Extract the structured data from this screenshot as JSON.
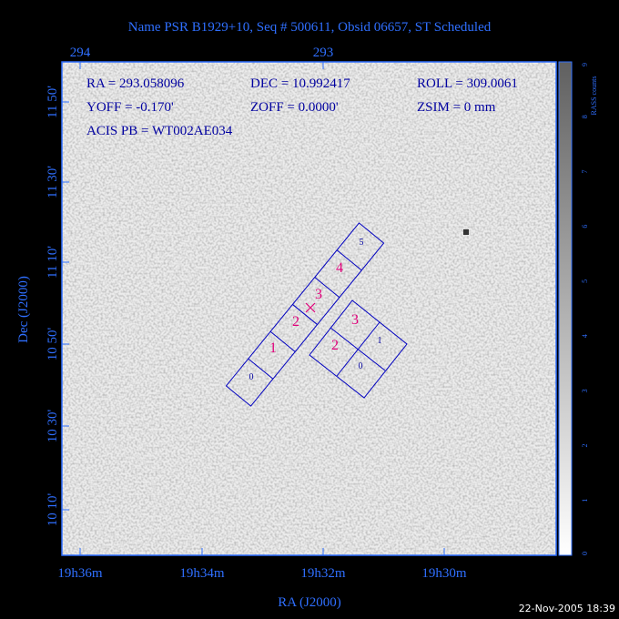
{
  "header": {
    "title": "Name PSR B1929+10, Seq # 500611, Obsid 06657, ST Scheduled"
  },
  "top_axis": {
    "labels": [
      "294",
      "293"
    ]
  },
  "info": {
    "line1": [
      "RA = 293.058096",
      "DEC = 10.992417",
      "ROLL = 309.0061"
    ],
    "line2": [
      "YOFF = -0.170'",
      "ZOFF = 0.0000'",
      "ZSIM = 0 mm"
    ],
    "line3": "ACIS PB = WT002AE034"
  },
  "left_axis": {
    "title": "Dec (J2000)",
    "labels": [
      "11 50'",
      "11 30'",
      "11 10'",
      "10 50'",
      "10 30'",
      "10 10'"
    ]
  },
  "bottom_axis": {
    "title": "RA (J2000)",
    "labels": [
      "19h36m",
      "19h34m",
      "19h32m",
      "19h30m"
    ]
  },
  "colorbar": {
    "title": "RASS counts",
    "labels": [
      "0",
      "1",
      "2",
      "3",
      "4",
      "5",
      "6",
      "7",
      "8",
      "9"
    ]
  },
  "chips": {
    "strip": [
      "0",
      "1",
      "2",
      "3",
      "4",
      "5"
    ],
    "square": [
      "0",
      "1",
      "2",
      "3"
    ]
  },
  "footer": {
    "date": "22-Nov-2005 18:39"
  }
}
